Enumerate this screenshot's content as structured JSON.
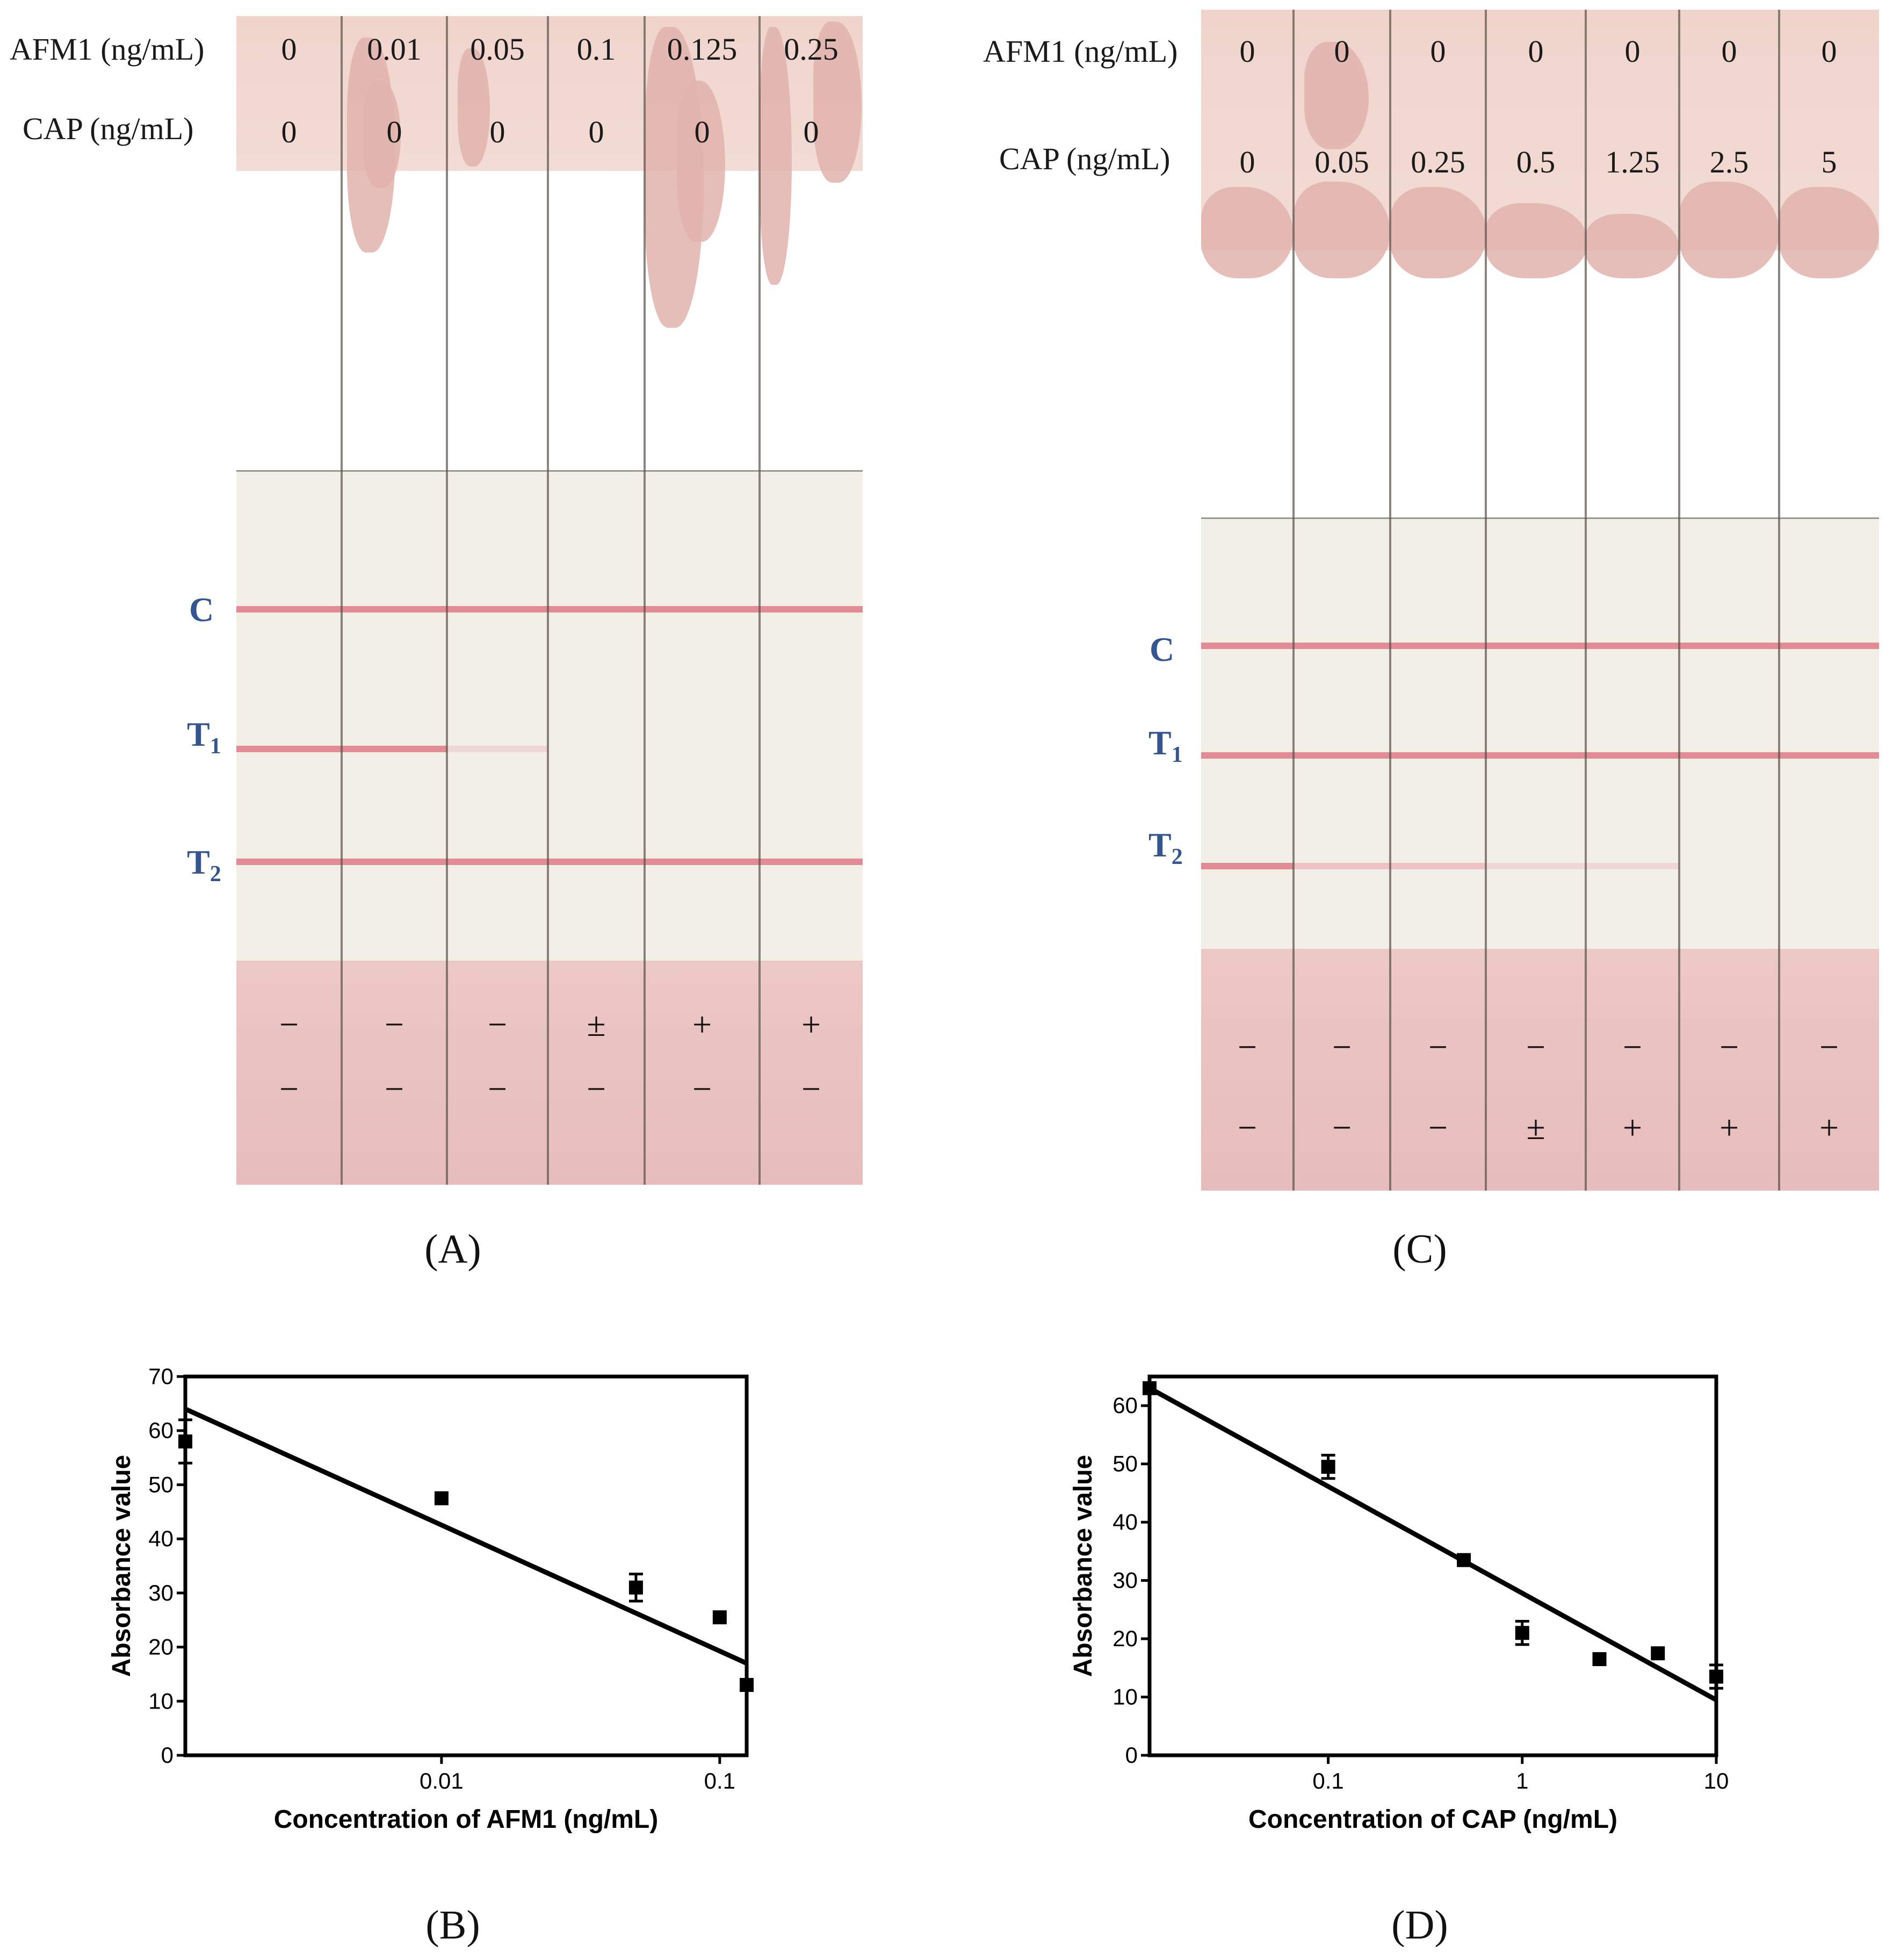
{
  "photo_a": {
    "afm1_header": "AFM1 (ng/mL)",
    "cap_header": "CAP (ng/mL)",
    "afm1_values": [
      "0",
      "0.01",
      "0.05",
      "0.1",
      "0.125",
      "0.25"
    ],
    "cap_values": [
      "0",
      "0",
      "0",
      "0",
      "0",
      "0"
    ],
    "line_c": "C",
    "line_t1": "T",
    "line_t1_sub": "1",
    "line_t2": "T",
    "line_t2_sub": "2",
    "result_row1": [
      "−",
      "−",
      "−",
      "±",
      "+",
      "+"
    ],
    "result_row2": [
      "−",
      "−",
      "−",
      "−",
      "−",
      "−"
    ],
    "panel_label": "(A)"
  },
  "photo_c": {
    "afm1_header": "AFM1 (ng/mL)",
    "cap_header": "CAP (ng/mL)",
    "afm1_values": [
      "0",
      "0",
      "0",
      "0",
      "0",
      "0",
      "0"
    ],
    "cap_values": [
      "0",
      "0.05",
      "0.25",
      "0.5",
      "1.25",
      "2.5",
      "5"
    ],
    "line_c": "C",
    "line_t1": "T",
    "line_t1_sub": "1",
    "line_t2": "T",
    "line_t2_sub": "2",
    "result_row1": [
      "−",
      "−",
      "−",
      "−",
      "−",
      "−",
      "−"
    ],
    "result_row2": [
      "−",
      "−",
      "−",
      "±",
      "+",
      "+",
      "+"
    ],
    "panel_label": "(C)"
  },
  "chart_data": [
    {
      "type": "scatter",
      "panel_label": "(B)",
      "xlabel": "Concentration of AFM1 (ng/mL)",
      "ylabel": "Absorbance value",
      "x_scale": "log",
      "xlim": [
        0.0012,
        0.125
      ],
      "ylim": [
        0,
        70
      ],
      "xticks": [
        0.01,
        0.1
      ],
      "xtick_labels": [
        "0.01",
        "0.1"
      ],
      "yticks": [
        0,
        10,
        20,
        30,
        40,
        50,
        60,
        70
      ],
      "points": [
        {
          "x": 0.0012,
          "y": 58,
          "err": 4
        },
        {
          "x": 0.01,
          "y": 47.5,
          "err": 0
        },
        {
          "x": 0.05,
          "y": 31,
          "err": 2.5
        },
        {
          "x": 0.1,
          "y": 25.5,
          "err": 0
        },
        {
          "x": 0.125,
          "y": 13,
          "err": 0
        }
      ],
      "fit": [
        {
          "x": 0.0012,
          "y": 64
        },
        {
          "x": 0.125,
          "y": 17
        }
      ],
      "marker_color": "#000000"
    },
    {
      "type": "scatter",
      "panel_label": "(D)",
      "xlabel": "Concentration of CAP (ng/mL)",
      "ylabel": "Absorbance value",
      "x_scale": "log",
      "xlim": [
        0.012,
        10
      ],
      "ylim": [
        0,
        65
      ],
      "xticks": [
        0.1,
        1,
        10
      ],
      "xtick_labels": [
        "0.1",
        "1",
        "10"
      ],
      "yticks": [
        0,
        10,
        20,
        30,
        40,
        50,
        60
      ],
      "points": [
        {
          "x": 0.012,
          "y": 63,
          "err": 0
        },
        {
          "x": 0.1,
          "y": 49.5,
          "err": 2
        },
        {
          "x": 0.5,
          "y": 33.5,
          "err": 0
        },
        {
          "x": 1,
          "y": 21,
          "err": 2
        },
        {
          "x": 2.5,
          "y": 16.5,
          "err": 0
        },
        {
          "x": 5,
          "y": 17.5,
          "err": 0
        },
        {
          "x": 10,
          "y": 13.5,
          "err": 2
        }
      ],
      "fit": [
        {
          "x": 0.012,
          "y": 63
        },
        {
          "x": 10,
          "y": 9.5
        }
      ],
      "marker_color": "#000000"
    }
  ]
}
